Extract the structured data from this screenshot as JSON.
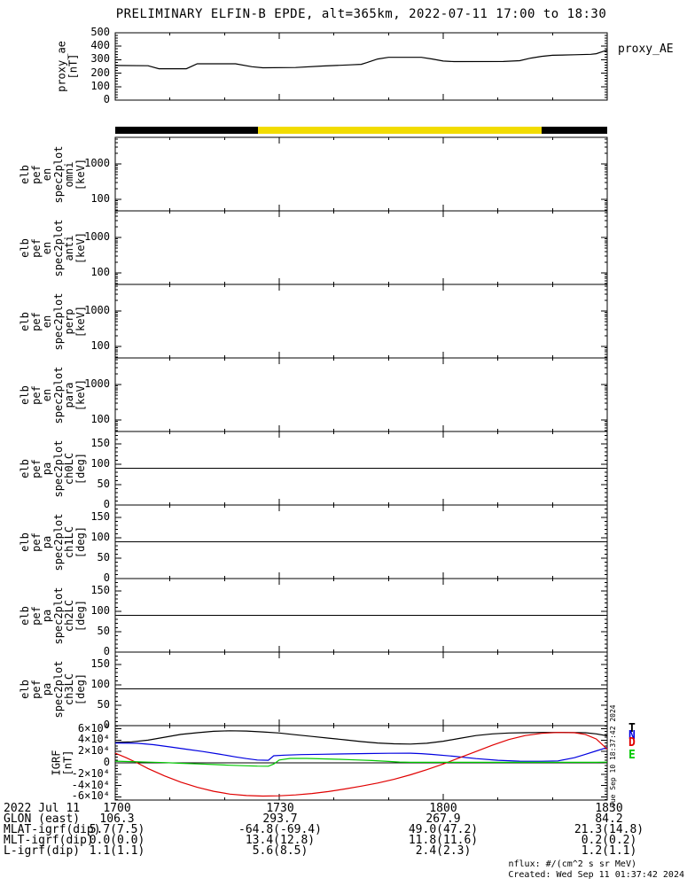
{
  "title": "PRELIMINARY ELFIN-B EPDE, alt=365km, 2022-07-11 17:00 to 18:30",
  "side_timestamp": "Tue Sep 10 18:37:42 2024",
  "colors": {
    "background": "#ffffff",
    "frame": "#000000",
    "sunlight_yellow": "#f2dc00",
    "series_black": "#000000",
    "series_blue": "#0000e0",
    "series_red": "#e00000",
    "series_green": "#00c800"
  },
  "legend": [
    {
      "label": "T",
      "color": "#000000"
    },
    {
      "label": "N",
      "color": "#0000e0"
    },
    {
      "label": "D",
      "color": "#e00000"
    },
    {
      "label": "E",
      "color": "#00c800"
    }
  ],
  "chart_data": {
    "type": "line",
    "subtype": "multi-panel time series with blank spectrogram panels",
    "x_axis": {
      "start_label": "2022 Jul 11 17:00",
      "end_label": "18:30",
      "range_minutes": [
        0,
        90
      ],
      "major_tick_minutes": [
        0,
        30,
        60,
        90
      ],
      "major_tick_labels": [
        "1700",
        "1730",
        "1800",
        "1830"
      ],
      "minor_step_minutes": 10,
      "grid": "off"
    },
    "panels": [
      {
        "id": "proxy_ae",
        "type": "line",
        "ylabel_lines": [
          "proxy_ae",
          "[nT]"
        ],
        "right_label": "proxy_AE",
        "ylim": [
          0,
          500
        ],
        "yticks": [
          0,
          100,
          200,
          300,
          400,
          500
        ],
        "y_minor_step": 20,
        "series": [
          {
            "name": "proxy_AE",
            "color": "#000000",
            "points": [
              [
                0,
                257
              ],
              [
                6,
                255
              ],
              [
                8,
                233
              ],
              [
                13,
                233
              ],
              [
                15,
                270
              ],
              [
                22,
                270
              ],
              [
                25,
                248
              ],
              [
                27,
                240
              ],
              [
                33,
                242
              ],
              [
                38,
                253
              ],
              [
                43,
                262
              ],
              [
                45,
                266
              ],
              [
                46,
                278
              ],
              [
                48,
                305
              ],
              [
                50,
                318
              ],
              [
                56,
                318
              ],
              [
                58,
                305
              ],
              [
                60,
                290
              ],
              [
                62,
                286
              ],
              [
                71,
                287
              ],
              [
                74,
                293
              ],
              [
                76,
                312
              ],
              [
                78,
                325
              ],
              [
                80,
                333
              ],
              [
                84,
                337
              ],
              [
                87,
                340
              ],
              [
                88,
                345
              ],
              [
                89,
                358
              ],
              [
                90,
                372
              ]
            ]
          }
        ]
      },
      {
        "id": "sunlight_bar",
        "type": "segment-bar",
        "segments": [
          {
            "start_frac": 0.0,
            "end_frac": 0.29,
            "color": "#000000"
          },
          {
            "start_frac": 0.29,
            "end_frac": 0.867,
            "color": "#f2dc00"
          },
          {
            "start_frac": 0.867,
            "end_frac": 1.0,
            "color": "#000000"
          }
        ]
      },
      {
        "id": "en_omni",
        "type": "spectrogram",
        "empty": true,
        "yscale": "log",
        "ylabel_lines": [
          "elb",
          "pef",
          "en",
          "spec2plot",
          "omni",
          "[keV]"
        ],
        "ylim": [
          47,
          5600
        ],
        "yticks": [
          100,
          1000
        ],
        "ytick_labels": [
          "100",
          "1000"
        ]
      },
      {
        "id": "en_anti",
        "type": "spectrogram",
        "empty": true,
        "yscale": "log",
        "ylabel_lines": [
          "elb",
          "pef",
          "en",
          "spec2plot",
          "anti",
          "[keV]"
        ],
        "ylim": [
          47,
          5600
        ],
        "yticks": [
          100,
          1000
        ],
        "ytick_labels": [
          "100",
          "1000"
        ]
      },
      {
        "id": "en_perp",
        "type": "spectrogram",
        "empty": true,
        "yscale": "log",
        "ylabel_lines": [
          "elb",
          "pef",
          "en",
          "spec2plot",
          "perp",
          "[keV]"
        ],
        "ylim": [
          47,
          5600
        ],
        "yticks": [
          100,
          1000
        ],
        "ytick_labels": [
          "100",
          "1000"
        ]
      },
      {
        "id": "en_para",
        "type": "spectrogram",
        "empty": true,
        "yscale": "log",
        "ylabel_lines": [
          "elb",
          "pef",
          "en",
          "spec2plot",
          "para",
          "[keV]"
        ],
        "ylim": [
          47,
          5600
        ],
        "yticks": [
          100,
          1000
        ],
        "ytick_labels": [
          "100",
          "1000"
        ]
      },
      {
        "id": "pa_ch0lc",
        "type": "spectrogram",
        "empty": true,
        "yscale": "linear",
        "ylabel_lines": [
          "elb",
          "pef",
          "pa",
          "spec2plot",
          "ch0LC",
          "[deg]"
        ],
        "ylim": [
          0,
          180
        ],
        "yticks": [
          0,
          50,
          100,
          150
        ],
        "ytick_labels": [
          "0",
          "50",
          "100",
          "150"
        ],
        "y_minor_step": 10,
        "ref_line": 90
      },
      {
        "id": "pa_ch1lc",
        "type": "spectrogram",
        "empty": true,
        "yscale": "linear",
        "ylabel_lines": [
          "elb",
          "pef",
          "pa",
          "spec2plot",
          "ch1LC",
          "[deg]"
        ],
        "ylim": [
          0,
          180
        ],
        "yticks": [
          0,
          50,
          100,
          150
        ],
        "ytick_labels": [
          "0",
          "50",
          "100",
          "150"
        ],
        "y_minor_step": 10,
        "ref_line": 90
      },
      {
        "id": "pa_ch2lc",
        "type": "spectrogram",
        "empty": true,
        "yscale": "linear",
        "ylabel_lines": [
          "elb",
          "pef",
          "pa",
          "spec2plot",
          "ch2LC",
          "[deg]"
        ],
        "ylim": [
          0,
          180
        ],
        "yticks": [
          0,
          50,
          100,
          150
        ],
        "ytick_labels": [
          "0",
          "50",
          "100",
          "150"
        ],
        "y_minor_step": 10,
        "ref_line": 90
      },
      {
        "id": "pa_ch3lc",
        "type": "spectrogram",
        "empty": true,
        "yscale": "linear",
        "ylabel_lines": [
          "elb",
          "pef",
          "pa",
          "spec2plot",
          "ch3LC",
          "[deg]"
        ],
        "ylim": [
          0,
          180
        ],
        "yticks": [
          0,
          50,
          100,
          150
        ],
        "ytick_labels": [
          "0",
          "50",
          "100",
          "150"
        ],
        "y_minor_step": 10,
        "ref_line": 90
      },
      {
        "id": "igrf",
        "type": "line",
        "ylabel_lines": [
          "IGRF",
          "[nT]"
        ],
        "ylim": [
          -65500,
          65500
        ],
        "yticks": [
          60000,
          40000,
          20000,
          0,
          -20000,
          -40000,
          -60000
        ],
        "ytick_labels": [
          "6×10⁴",
          "4×10⁴",
          "2×10⁴",
          "0",
          "-2×10⁴",
          "-4×10⁴",
          "-6×10⁴"
        ],
        "y_minor_step": 5000,
        "zero_line": true,
        "legend_position": "right-outside",
        "series": [
          {
            "name": "T",
            "color": "#000000",
            "points": [
              [
                0,
                36000
              ],
              [
                3,
                37000
              ],
              [
                6,
                40000
              ],
              [
                9,
                45000
              ],
              [
                12,
                50000
              ],
              [
                15,
                53000
              ],
              [
                18,
                55500
              ],
              [
                21,
                56500
              ],
              [
                24,
                56000
              ],
              [
                27,
                54500
              ],
              [
                30,
                52500
              ],
              [
                33,
                49500
              ],
              [
                36,
                46500
              ],
              [
                39,
                43500
              ],
              [
                42,
                40500
              ],
              [
                45,
                37500
              ],
              [
                48,
                35000
              ],
              [
                51,
                33500
              ],
              [
                54,
                33000
              ],
              [
                57,
                34500
              ],
              [
                60,
                38000
              ],
              [
                63,
                43000
              ],
              [
                66,
                48000
              ],
              [
                69,
                51000
              ],
              [
                72,
                52500
              ],
              [
                75,
                53000
              ],
              [
                78,
                53500
              ],
              [
                82,
                53500
              ],
              [
                86,
                53000
              ],
              [
                88,
                51000
              ],
              [
                90,
                47500
              ]
            ]
          },
          {
            "name": "N",
            "color": "#0000e0",
            "points": [
              [
                0,
                35000
              ],
              [
                4,
                34500
              ],
              [
                7,
                32000
              ],
              [
                10,
                28000
              ],
              [
                13,
                24000
              ],
              [
                16,
                20000
              ],
              [
                19,
                15500
              ],
              [
                22,
                10500
              ],
              [
                24,
                7500
              ],
              [
                26,
                5000
              ],
              [
                28,
                4500
              ],
              [
                29,
                12500
              ],
              [
                31,
                13500
              ],
              [
                34,
                14500
              ],
              [
                38,
                15200
              ],
              [
                42,
                15800
              ],
              [
                46,
                16300
              ],
              [
                50,
                16800
              ],
              [
                54,
                17000
              ],
              [
                56,
                16200
              ],
              [
                58,
                14800
              ],
              [
                62,
                11500
              ],
              [
                66,
                7500
              ],
              [
                70,
                4500
              ],
              [
                74,
                3000
              ],
              [
                78,
                2800
              ],
              [
                81,
                3500
              ],
              [
                84,
                9000
              ],
              [
                86,
                15000
              ],
              [
                88,
                21000
              ],
              [
                90,
                27000
              ]
            ]
          },
          {
            "name": "D",
            "color": "#e00000",
            "points": [
              [
                0,
                17000
              ],
              [
                2,
                9000
              ],
              [
                4,
                0
              ],
              [
                6,
                -10000
              ],
              [
                9,
                -23000
              ],
              [
                12,
                -34000
              ],
              [
                15,
                -43000
              ],
              [
                18,
                -50000
              ],
              [
                21,
                -55000
              ],
              [
                24,
                -57500
              ],
              [
                27,
                -58500
              ],
              [
                30,
                -58000
              ],
              [
                33,
                -56500
              ],
              [
                36,
                -54000
              ],
              [
                39,
                -50500
              ],
              [
                42,
                -46000
              ],
              [
                45,
                -41000
              ],
              [
                48,
                -35500
              ],
              [
                51,
                -29000
              ],
              [
                54,
                -21000
              ],
              [
                57,
                -12000
              ],
              [
                60,
                -2000
              ],
              [
                63,
                9000
              ],
              [
                66,
                20000
              ],
              [
                69,
                31000
              ],
              [
                72,
                41000
              ],
              [
                75,
                48000
              ],
              [
                78,
                52000
              ],
              [
                81,
                53500
              ],
              [
                84,
                53000
              ],
              [
                86,
                50000
              ],
              [
                88,
                42000
              ],
              [
                90,
                24000
              ]
            ]
          },
          {
            "name": "E",
            "color": "#00c800",
            "points": [
              [
                0,
                3000
              ],
              [
                3,
                2200
              ],
              [
                6,
                1200
              ],
              [
                9,
                400
              ],
              [
                12,
                -800
              ],
              [
                15,
                -1800
              ],
              [
                18,
                -3000
              ],
              [
                21,
                -4200
              ],
              [
                24,
                -5200
              ],
              [
                26,
                -5800
              ],
              [
                28,
                -6000
              ],
              [
                29,
                -2000
              ],
              [
                30,
                5000
              ],
              [
                32,
                7800
              ],
              [
                35,
                7800
              ],
              [
                38,
                7000
              ],
              [
                41,
                6200
              ],
              [
                44,
                5200
              ],
              [
                47,
                4000
              ],
              [
                50,
                2500
              ],
              [
                52,
                1400
              ],
              [
                54,
                1000
              ],
              [
                58,
                900
              ],
              [
                64,
                900
              ],
              [
                70,
                900
              ],
              [
                76,
                900
              ],
              [
                82,
                900
              ],
              [
                88,
                900
              ],
              [
                90,
                1200
              ]
            ]
          }
        ]
      }
    ]
  },
  "footer": {
    "rows": [
      {
        "label": "2022 Jul 11",
        "values": [
          "1700",
          "1730",
          "1800",
          "1830"
        ]
      },
      {
        "label": "GLON (east)",
        "values": [
          "106.3",
          "293.7",
          "267.9",
          "84.2"
        ]
      },
      {
        "label": "MLAT-igrf(dip)",
        "values": [
          "5.7(7.5)",
          "-64.8(-69.4)",
          "49.0(47.2)",
          "21.3(14.8)"
        ]
      },
      {
        "label": "MLT-igrf(dip)",
        "values": [
          "0.0(0.0)",
          "13.4(12.8)",
          "11.8(11.6)",
          "0.2(0.2)"
        ]
      },
      {
        "label": "L-igrf(dip)",
        "values": [
          "1.1(1.1)",
          "5.6(8.5)",
          "2.4(2.3)",
          "1.2(1.1)"
        ]
      }
    ],
    "nflux_note": "nflux: #/(cm^2 s sr MeV)",
    "created": "Created: Wed Sep 11 01:37:42 2024"
  }
}
